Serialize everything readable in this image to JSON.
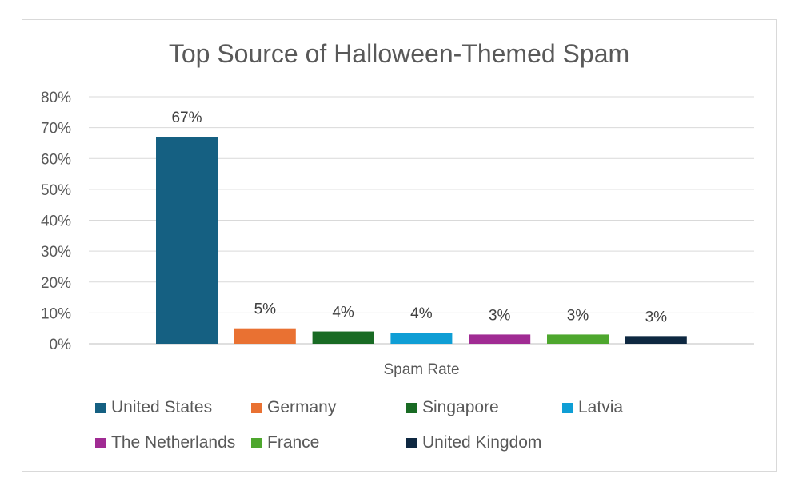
{
  "chart_data": {
    "type": "bar",
    "title": "Top Source of Halloween-Themed Spam",
    "xlabel": "Spam Rate",
    "ylabel": "",
    "ylim": [
      0,
      80
    ],
    "yticks": [
      "0%",
      "10%",
      "20%",
      "30%",
      "40%",
      "50%",
      "60%",
      "70%",
      "80%"
    ],
    "ytick_values": [
      0,
      10,
      20,
      30,
      40,
      50,
      60,
      70,
      80
    ],
    "grid": true,
    "legend_position": "bottom",
    "series": [
      {
        "name": "United States",
        "value": 67,
        "label": "67%",
        "color": "#156082"
      },
      {
        "name": "Germany",
        "value": 5,
        "label": "5%",
        "color": "#E97132"
      },
      {
        "name": "Singapore",
        "value": 4,
        "label": "4%",
        "color": "#196B24"
      },
      {
        "name": "Latvia",
        "value": 3.6,
        "label": "4%",
        "color": "#0F9ED5"
      },
      {
        "name": "The Netherlands",
        "value": 3,
        "label": "3%",
        "color": "#A02B93"
      },
      {
        "name": "France",
        "value": 3,
        "label": "3%",
        "color": "#4EA72E"
      },
      {
        "name": "United Kingdom",
        "value": 2.5,
        "label": "3%",
        "color": "#0E2841"
      }
    ]
  }
}
